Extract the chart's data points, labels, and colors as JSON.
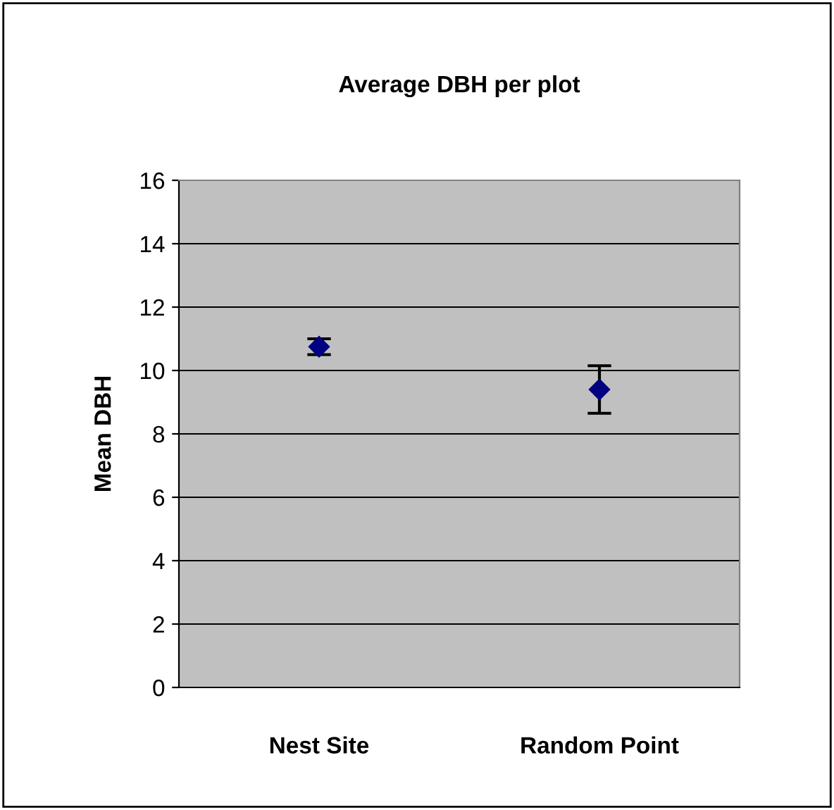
{
  "chart_data": {
    "type": "scatter",
    "title": "Average DBH per plot",
    "ylabel": "Mean DBH",
    "categories": [
      "Nest Site",
      "Random Point"
    ],
    "series": [
      {
        "color": "#000080",
        "values": [
          10.75,
          9.4
        ],
        "errors": [
          0.25,
          0.75
        ]
      }
    ],
    "ylim": [
      0,
      16
    ],
    "yticks": [
      0,
      2,
      4,
      6,
      8,
      10,
      12,
      14,
      16
    ],
    "grid": "y",
    "marker": "diamond",
    "legend": false
  }
}
